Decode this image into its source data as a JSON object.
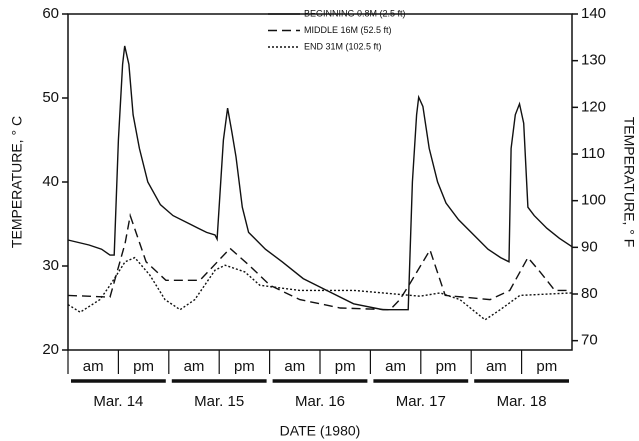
{
  "chart_data": {
    "type": "line",
    "xlabel": "DATE (1980)",
    "ylabel": "TEMPERATURE, ° C",
    "y2label": "TEMPERATURE, ° F",
    "xlim": [
      0,
      120
    ],
    "ylim": [
      20,
      60
    ],
    "yticks": [
      20,
      30,
      40,
      50,
      60
    ],
    "y2lim": [
      68,
      140
    ],
    "y2ticks": [
      70,
      80,
      90,
      100,
      110,
      120,
      130,
      140
    ],
    "periods": [
      "am",
      "pm",
      "am",
      "pm",
      "am",
      "pm",
      "am",
      "pm",
      "am",
      "pm"
    ],
    "days": [
      "Mar. 14",
      "Mar. 15",
      "Mar. 16",
      "Mar. 17",
      "Mar. 18"
    ],
    "series": [
      {
        "name": "BEGINNING  0.8M (2.5 ft)",
        "color": "#111111",
        "dash": "solid",
        "x": [
          0,
          5,
          8,
          10,
          11,
          12,
          13,
          13.5,
          14.5,
          15.5,
          17,
          19,
          22,
          25,
          29,
          31,
          33,
          35,
          35.5,
          37,
          38,
          39,
          40,
          41.5,
          43,
          47,
          51,
          56,
          62,
          68,
          75,
          80,
          81,
          82,
          83,
          83.5,
          84.5,
          86,
          88,
          90,
          93,
          96,
          100,
          103,
          105,
          105.5,
          106.5,
          107.5,
          108.5,
          109.5,
          111,
          114,
          117,
          120
        ],
        "values": [
          33.1,
          32.5,
          32,
          31.3,
          31.3,
          45,
          54,
          56.2,
          54,
          48,
          44,
          40,
          37.3,
          36,
          35,
          34.5,
          34,
          33.7,
          33.2,
          45,
          48.8,
          46,
          43,
          37,
          34,
          32,
          30.5,
          28.5,
          27,
          25.5,
          24.8,
          24.8,
          24.8,
          40,
          48,
          50.1,
          49,
          44,
          40,
          37.5,
          35.5,
          34,
          32,
          31,
          30.5,
          44,
          48,
          49.3,
          47,
          37,
          36,
          34.5,
          33.3,
          32.3
        ]
      },
      {
        "name": "MIDDLE 16M (52.5 ft)",
        "color": "#111111",
        "dash": "dashed",
        "x": [
          0,
          10,
          13.6,
          14.8,
          18.6,
          23.3,
          31.4,
          38.6,
          43.3,
          48.1,
          55.2,
          64.8,
          76.7,
          79,
          81.4,
          86.2,
          89.8,
          100.5,
          105.2,
          109.5,
          112.4,
          115.9,
          120
        ],
        "values": [
          26.5,
          26.3,
          32.7,
          36,
          30.5,
          28.3,
          28.3,
          32.1,
          30,
          27.7,
          26,
          25,
          24.8,
          26,
          27.9,
          31.9,
          26.5,
          26,
          27.1,
          31,
          29.3,
          27.1,
          27.1
        ]
      },
      {
        "name": "END 31M (102.5 ft)",
        "color": "#111111",
        "dash": "dotted",
        "x": [
          0,
          2.9,
          7.6,
          10,
          13.6,
          15.9,
          19.5,
          23.1,
          26.7,
          30.2,
          35,
          37.4,
          42.1,
          45.7,
          55.2,
          68.1,
          83.8,
          88.6,
          93.3,
          99.3,
          102.9,
          107.6,
          120
        ],
        "values": [
          25.4,
          24.5,
          26,
          27.7,
          30.5,
          31,
          28.9,
          26,
          24.8,
          26,
          29.5,
          30.1,
          29.3,
          27.7,
          27.1,
          27.1,
          26.4,
          26.8,
          26,
          23.6,
          24.8,
          26.5,
          26.8
        ]
      }
    ]
  }
}
